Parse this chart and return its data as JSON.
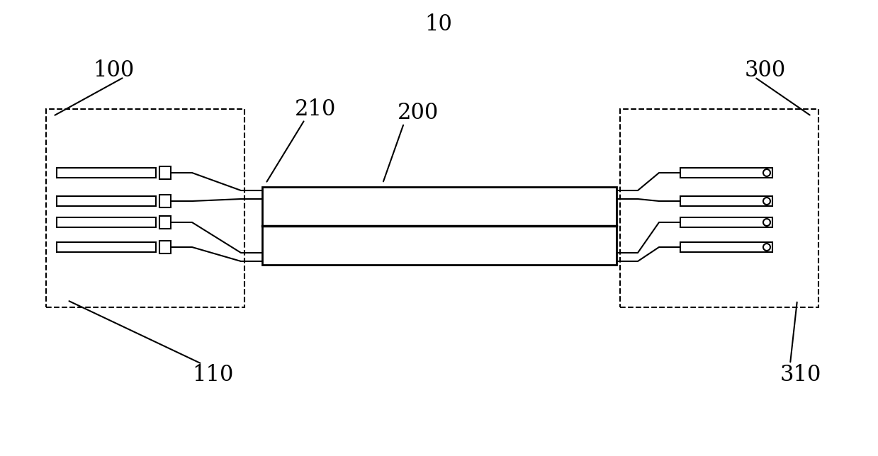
{
  "bg_color": "#ffffff",
  "line_color": "#000000",
  "title": "10",
  "label_100": "100",
  "label_110": "110",
  "label_200": "200",
  "label_210": "210",
  "label_300": "300",
  "label_310": "310",
  "figsize": [
    12.39,
    6.44
  ],
  "dpi": 100
}
